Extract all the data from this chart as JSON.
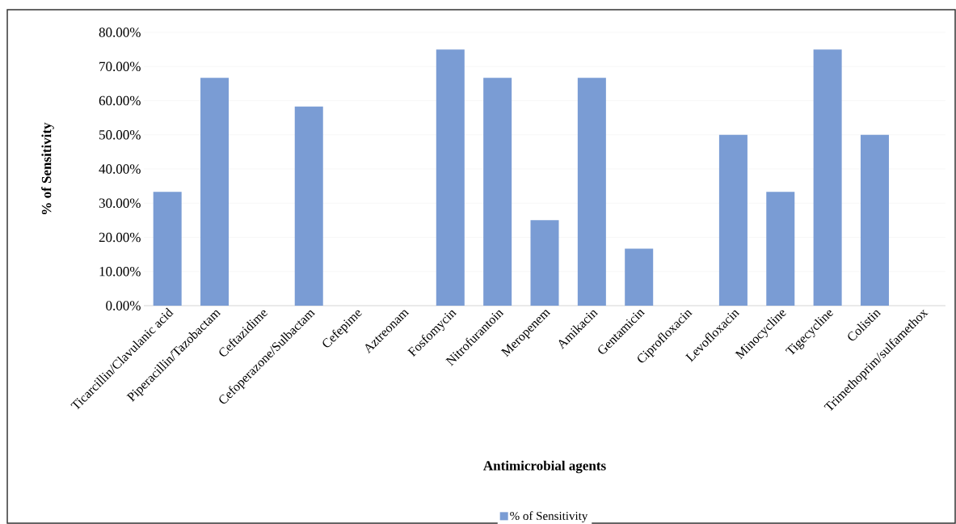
{
  "chart_data": {
    "type": "bar",
    "xlabel": "Antimicrobial agents",
    "ylabel": "% of Sensitivity",
    "categories": [
      "Ticarcillin/Clavulanic  acid",
      "Piperacillin/Tazobactam",
      "Ceftazidime",
      "Cefoperazone/Sulbactam",
      "Cefepime",
      "Aztreonam",
      "Fosfomycin",
      "Nitrofurantoin",
      "Meropenem",
      "Amikacin",
      "Gentamicin",
      "Ciprofloxacin",
      "Levofloxacin",
      "Minocycline",
      "Tigecycline",
      "Colistin",
      "Trimethoprim/sulfamethox"
    ],
    "series": [
      {
        "name": "% of Sensitivity",
        "color": "#7a9cd4",
        "values": [
          33.3,
          66.7,
          0,
          58.3,
          0,
          0,
          75,
          66.7,
          25,
          66.7,
          16.7,
          0,
          50,
          33.3,
          75,
          50,
          0
        ]
      }
    ],
    "ylim": [
      0,
      80
    ],
    "yticks": [
      {
        "value": 0,
        "label": "0.00%"
      },
      {
        "value": 10,
        "label": "10.00%"
      },
      {
        "value": 20,
        "label": "20.00%"
      },
      {
        "value": 30,
        "label": "30.00%"
      },
      {
        "value": 40,
        "label": "40.00%"
      },
      {
        "value": 50,
        "label": "50.00%"
      },
      {
        "value": 60,
        "label": "60.00%"
      },
      {
        "value": 70,
        "label": "70.00%"
      },
      {
        "value": 80,
        "label": "80.00%"
      }
    ],
    "grid": "y",
    "legend": "bottom"
  }
}
